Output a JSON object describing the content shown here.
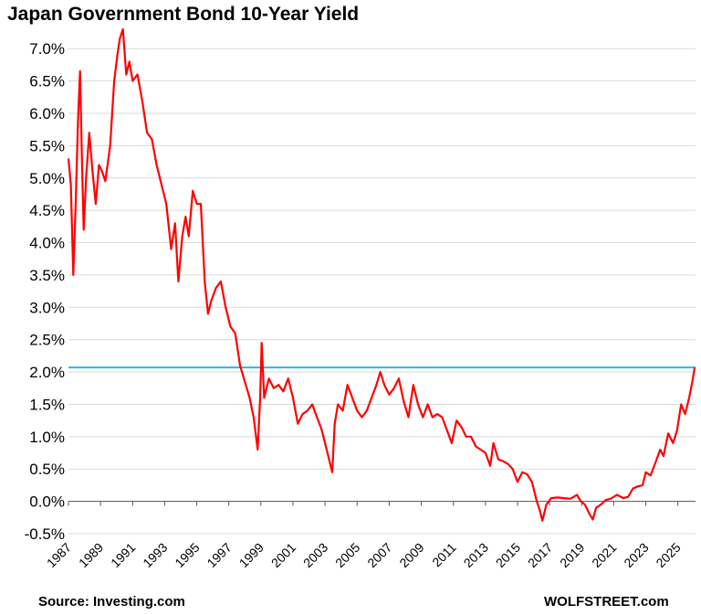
{
  "chart_data": {
    "type": "line",
    "title": "Japan Government Bond 10-Year Yield",
    "source": "Source: Investing.com",
    "credit": "WOLFSTREET.com",
    "xlim": [
      1987,
      2026.1
    ],
    "ylim": [
      -0.5,
      7.3
    ],
    "ytick_values": [
      -0.5,
      0.0,
      0.5,
      1.0,
      1.5,
      2.0,
      2.5,
      3.0,
      3.5,
      4.0,
      4.5,
      5.0,
      5.5,
      6.0,
      6.5,
      7.0
    ],
    "ytick_labels": [
      "-0.5%",
      "0.0%",
      "0.5%",
      "1.0%",
      "1.5%",
      "2.0%",
      "2.5%",
      "3.0%",
      "3.5%",
      "4.0%",
      "4.5%",
      "5.0%",
      "5.5%",
      "6.0%",
      "6.5%",
      "7.0%"
    ],
    "xtick_labels": [
      "1987",
      "1989",
      "1991",
      "1993",
      "1995",
      "1997",
      "1999",
      "2001",
      "2003",
      "2005",
      "2007",
      "2009",
      "2011",
      "2013",
      "2015",
      "2017",
      "2019",
      "2021",
      "2023",
      "2025"
    ],
    "grid": true,
    "reference_line": {
      "y": 2.07,
      "color": "#2eb5e8"
    },
    "series": [
      {
        "color": "#ff0000",
        "points": [
          [
            1987.0,
            5.3
          ],
          [
            1987.15,
            4.9
          ],
          [
            1987.3,
            3.5
          ],
          [
            1987.45,
            4.6
          ],
          [
            1987.6,
            5.9
          ],
          [
            1987.72,
            6.65
          ],
          [
            1987.85,
            5.2
          ],
          [
            1987.95,
            4.2
          ],
          [
            1988.1,
            5.0
          ],
          [
            1988.3,
            5.7
          ],
          [
            1988.5,
            5.1
          ],
          [
            1988.7,
            4.6
          ],
          [
            1988.9,
            5.2
          ],
          [
            1989.1,
            5.1
          ],
          [
            1989.3,
            4.95
          ],
          [
            1989.6,
            5.5
          ],
          [
            1989.85,
            6.5
          ],
          [
            1990.05,
            6.9
          ],
          [
            1990.2,
            7.15
          ],
          [
            1990.4,
            7.3
          ],
          [
            1990.6,
            6.6
          ],
          [
            1990.8,
            6.8
          ],
          [
            1991.0,
            6.5
          ],
          [
            1991.3,
            6.6
          ],
          [
            1991.6,
            6.2
          ],
          [
            1991.9,
            5.7
          ],
          [
            1992.2,
            5.6
          ],
          [
            1992.5,
            5.2
          ],
          [
            1992.8,
            4.9
          ],
          [
            1993.1,
            4.6
          ],
          [
            1993.4,
            3.9
          ],
          [
            1993.65,
            4.3
          ],
          [
            1993.85,
            3.4
          ],
          [
            1994.1,
            4.1
          ],
          [
            1994.3,
            4.4
          ],
          [
            1994.5,
            4.1
          ],
          [
            1994.75,
            4.8
          ],
          [
            1995.0,
            4.6
          ],
          [
            1995.25,
            4.6
          ],
          [
            1995.5,
            3.4
          ],
          [
            1995.7,
            2.9
          ],
          [
            1995.9,
            3.1
          ],
          [
            1996.2,
            3.3
          ],
          [
            1996.5,
            3.4
          ],
          [
            1996.8,
            3.0
          ],
          [
            1997.1,
            2.7
          ],
          [
            1997.4,
            2.6
          ],
          [
            1997.7,
            2.1
          ],
          [
            1998.0,
            1.85
          ],
          [
            1998.3,
            1.6
          ],
          [
            1998.55,
            1.3
          ],
          [
            1998.8,
            0.8
          ],
          [
            1998.95,
            1.6
          ],
          [
            1999.05,
            2.45
          ],
          [
            1999.2,
            1.6
          ],
          [
            1999.5,
            1.9
          ],
          [
            1999.8,
            1.75
          ],
          [
            2000.1,
            1.8
          ],
          [
            2000.4,
            1.7
          ],
          [
            2000.7,
            1.9
          ],
          [
            2001.0,
            1.6
          ],
          [
            2001.3,
            1.2
          ],
          [
            2001.6,
            1.35
          ],
          [
            2001.9,
            1.4
          ],
          [
            2002.2,
            1.5
          ],
          [
            2002.5,
            1.3
          ],
          [
            2002.8,
            1.1
          ],
          [
            2003.1,
            0.8
          ],
          [
            2003.3,
            0.6
          ],
          [
            2003.45,
            0.45
          ],
          [
            2003.6,
            1.2
          ],
          [
            2003.8,
            1.5
          ],
          [
            2004.1,
            1.4
          ],
          [
            2004.4,
            1.8
          ],
          [
            2004.7,
            1.6
          ],
          [
            2005.0,
            1.4
          ],
          [
            2005.3,
            1.3
          ],
          [
            2005.6,
            1.4
          ],
          [
            2005.9,
            1.6
          ],
          [
            2006.2,
            1.8
          ],
          [
            2006.45,
            2.0
          ],
          [
            2006.7,
            1.8
          ],
          [
            2007.0,
            1.65
          ],
          [
            2007.3,
            1.75
          ],
          [
            2007.6,
            1.9
          ],
          [
            2007.9,
            1.55
          ],
          [
            2008.2,
            1.3
          ],
          [
            2008.5,
            1.8
          ],
          [
            2008.8,
            1.5
          ],
          [
            2009.1,
            1.3
          ],
          [
            2009.4,
            1.5
          ],
          [
            2009.7,
            1.3
          ],
          [
            2010.0,
            1.35
          ],
          [
            2010.3,
            1.3
          ],
          [
            2010.6,
            1.1
          ],
          [
            2010.9,
            0.9
          ],
          [
            2011.2,
            1.25
          ],
          [
            2011.5,
            1.15
          ],
          [
            2011.8,
            1.0
          ],
          [
            2012.1,
            1.0
          ],
          [
            2012.4,
            0.85
          ],
          [
            2012.7,
            0.8
          ],
          [
            2013.0,
            0.75
          ],
          [
            2013.3,
            0.55
          ],
          [
            2013.5,
            0.9
          ],
          [
            2013.8,
            0.65
          ],
          [
            2014.1,
            0.62
          ],
          [
            2014.4,
            0.58
          ],
          [
            2014.7,
            0.5
          ],
          [
            2015.0,
            0.3
          ],
          [
            2015.3,
            0.45
          ],
          [
            2015.6,
            0.42
          ],
          [
            2015.9,
            0.3
          ],
          [
            2016.2,
            0.0
          ],
          [
            2016.4,
            -0.15
          ],
          [
            2016.55,
            -0.3
          ],
          [
            2016.8,
            -0.05
          ],
          [
            2017.1,
            0.05
          ],
          [
            2017.5,
            0.06
          ],
          [
            2017.9,
            0.05
          ],
          [
            2018.3,
            0.04
          ],
          [
            2018.7,
            0.1
          ],
          [
            2018.95,
            0.0
          ],
          [
            2019.2,
            -0.05
          ],
          [
            2019.5,
            -0.2
          ],
          [
            2019.7,
            -0.28
          ],
          [
            2019.9,
            -0.1
          ],
          [
            2020.2,
            -0.05
          ],
          [
            2020.5,
            0.02
          ],
          [
            2020.8,
            0.04
          ],
          [
            2021.2,
            0.1
          ],
          [
            2021.6,
            0.05
          ],
          [
            2021.9,
            0.07
          ],
          [
            2022.2,
            0.2
          ],
          [
            2022.5,
            0.23
          ],
          [
            2022.8,
            0.25
          ],
          [
            2023.0,
            0.45
          ],
          [
            2023.3,
            0.4
          ],
          [
            2023.6,
            0.6
          ],
          [
            2023.9,
            0.8
          ],
          [
            2024.1,
            0.7
          ],
          [
            2024.4,
            1.05
          ],
          [
            2024.7,
            0.9
          ],
          [
            2024.95,
            1.1
          ],
          [
            2025.2,
            1.5
          ],
          [
            2025.45,
            1.35
          ],
          [
            2025.7,
            1.6
          ],
          [
            2025.9,
            1.85
          ],
          [
            2026.05,
            2.07
          ]
        ]
      }
    ]
  }
}
